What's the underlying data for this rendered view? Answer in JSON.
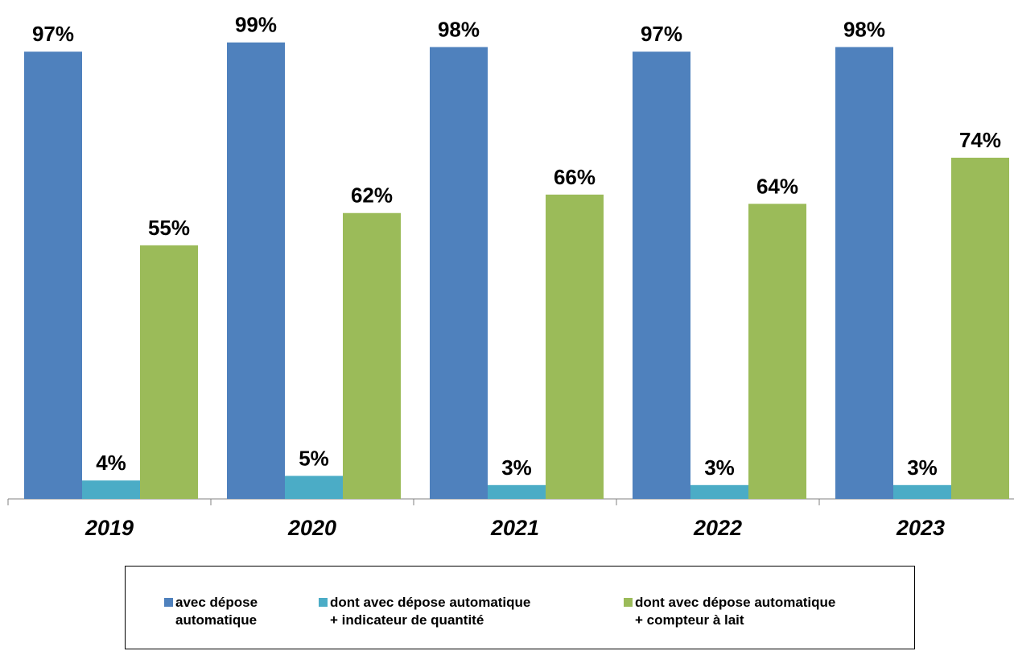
{
  "chart_data": {
    "type": "bar",
    "categories": [
      "2019",
      "2020",
      "2021",
      "2022",
      "2023"
    ],
    "series": [
      {
        "name": "avec dépose\nautomatique",
        "values": [
          97,
          99,
          98,
          97,
          98
        ],
        "labels": [
          "97%",
          "99%",
          "98%",
          "97%",
          "98%"
        ],
        "color": "#4F81BD"
      },
      {
        "name": "dont avec dépose automatique\n+ indicateur de quantité",
        "values": [
          4,
          5,
          3,
          3,
          3
        ],
        "labels": [
          "4%",
          "5%",
          "3%",
          "3%",
          "3%"
        ],
        "color": "#4BACC6"
      },
      {
        "name": "dont avec dépose automatique\n+ compteur à lait",
        "values": [
          55,
          62,
          66,
          64,
          74
        ],
        "labels": [
          "55%",
          "62%",
          "66%",
          "64%",
          "74%"
        ],
        "color": "#9BBB59"
      }
    ],
    "ylim": [
      0,
      100
    ],
    "grid": false,
    "legend_position": "bottom"
  }
}
